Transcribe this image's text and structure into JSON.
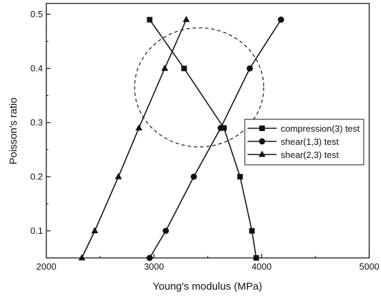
{
  "chart_data": {
    "type": "line",
    "xlabel": "Young's modulus (MPa)",
    "ylabel": "Poisson's ratio",
    "xlim": [
      2000,
      5000
    ],
    "ylim": [
      0.05,
      0.52
    ],
    "xticks": [
      2000,
      3000,
      4000,
      5000
    ],
    "yticks": [
      0.1,
      0.2,
      0.3,
      0.4,
      0.5
    ],
    "xtick_labels": [
      "2000",
      "3000",
      "4000",
      "5000"
    ],
    "ytick_labels": [
      "0.1",
      "0.2",
      "0.3",
      "0.4",
      "0.5"
    ],
    "legend_position": "right",
    "grid": false,
    "series": [
      {
        "name": "compression(3) test",
        "marker": "square",
        "points": [
          {
            "x": 2960,
            "y": 0.49
          },
          {
            "x": 3280,
            "y": 0.4
          },
          {
            "x": 3650,
            "y": 0.29
          },
          {
            "x": 3800,
            "y": 0.2
          },
          {
            "x": 3910,
            "y": 0.1
          },
          {
            "x": 3950,
            "y": 0.05
          }
        ]
      },
      {
        "name": "shear(1,3) test",
        "marker": "circle",
        "points": [
          {
            "x": 2960,
            "y": 0.05
          },
          {
            "x": 3110,
            "y": 0.1
          },
          {
            "x": 3370,
            "y": 0.2
          },
          {
            "x": 3620,
            "y": 0.29
          },
          {
            "x": 3890,
            "y": 0.4
          },
          {
            "x": 4180,
            "y": 0.49
          }
        ]
      },
      {
        "name": "shear(2,3) test",
        "marker": "triangle",
        "points": [
          {
            "x": 2330,
            "y": 0.05
          },
          {
            "x": 2450,
            "y": 0.1
          },
          {
            "x": 2670,
            "y": 0.2
          },
          {
            "x": 2860,
            "y": 0.29
          },
          {
            "x": 3100,
            "y": 0.4
          },
          {
            "x": 3300,
            "y": 0.49
          }
        ]
      }
    ],
    "annotation": {
      "shape": "dashed-ellipse",
      "center_x": 3420,
      "center_y": 0.365,
      "radius_x": 600,
      "radius_y": 0.11
    }
  }
}
